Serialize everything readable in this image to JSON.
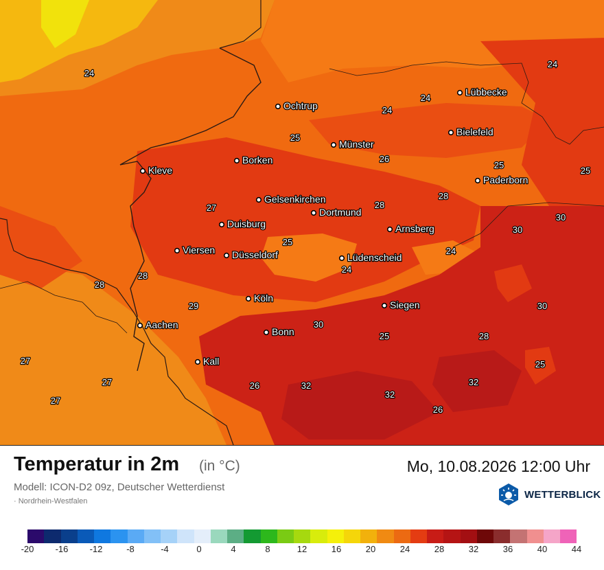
{
  "map": {
    "region": "Nordrhein-Westfalen",
    "colors": {
      "t24": "#f57a15",
      "t25": "#f06a10",
      "t26": "#ea4e12",
      "t27": "#f08a18",
      "t28": "#e23a12",
      "t30": "#cc2216",
      "t32": "#b81a18",
      "northwest": "#f5b80f",
      "yellow": "#f1e20c",
      "border": "#2a1a14"
    },
    "cities": [
      {
        "name": "Lübbecke"
      },
      {
        "name": "Ochtrup"
      },
      {
        "name": "Bielefeld"
      },
      {
        "name": "Münster"
      },
      {
        "name": "Borken"
      },
      {
        "name": "Kleve"
      },
      {
        "name": "Paderborn"
      },
      {
        "name": "Gelsenkirchen"
      },
      {
        "name": "Dortmund"
      },
      {
        "name": "Duisburg"
      },
      {
        "name": "Arnsberg"
      },
      {
        "name": "Viersen"
      },
      {
        "name": "Düsseldorf"
      },
      {
        "name": "Lüdenscheid"
      },
      {
        "name": "Köln"
      },
      {
        "name": "Siegen"
      },
      {
        "name": "Aachen"
      },
      {
        "name": "Bonn"
      },
      {
        "name": "Kall"
      }
    ],
    "values": [
      "24",
      "24",
      "24",
      "24",
      "25",
      "26",
      "25",
      "25",
      "27",
      "28",
      "28",
      "30",
      "30",
      "25",
      "24",
      "24",
      "28",
      "28",
      "29",
      "30",
      "30",
      "25",
      "28",
      "27",
      "25",
      "27",
      "26",
      "32",
      "32",
      "32",
      "27",
      "26"
    ]
  },
  "header": {
    "title": "Temperatur in 2m",
    "unit": "(in °C)",
    "datetime": "Mo, 10.08.2026 12:00 Uhr",
    "model": "Modell: ICON-D2 09z, Deutscher Wetterdienst",
    "region": "· Nordrhein-Westfalen"
  },
  "brand": {
    "name": "WETTERBLICK",
    "icon": "wetterblick-logo-icon"
  },
  "scale": {
    "colors": [
      "#2b0a6b",
      "#0d2a6e",
      "#0a3f8c",
      "#0a5ab8",
      "#0f78e0",
      "#2b93f0",
      "#5aaaf5",
      "#82c0f7",
      "#a6d2f8",
      "#cfe4fa",
      "#e4eefa",
      "#9ad8bd",
      "#5cae85",
      "#139a32",
      "#2db81c",
      "#7acb14",
      "#a6d90f",
      "#d8ec0c",
      "#f5f00a",
      "#f5d60a",
      "#f2b10c",
      "#f08a12",
      "#ec6a12",
      "#e43c12",
      "#c81c16",
      "#b51414",
      "#a30f12",
      "#6e0808",
      "#8a2d2d",
      "#c47373",
      "#f08f8f",
      "#f5a5c8",
      "#ef63b8"
    ],
    "labels": [
      "-20",
      "-16",
      "-12",
      "-8",
      "-4",
      "0",
      "4",
      "8",
      "12",
      "16",
      "20",
      "24",
      "28",
      "32",
      "36",
      "40",
      "44"
    ]
  }
}
